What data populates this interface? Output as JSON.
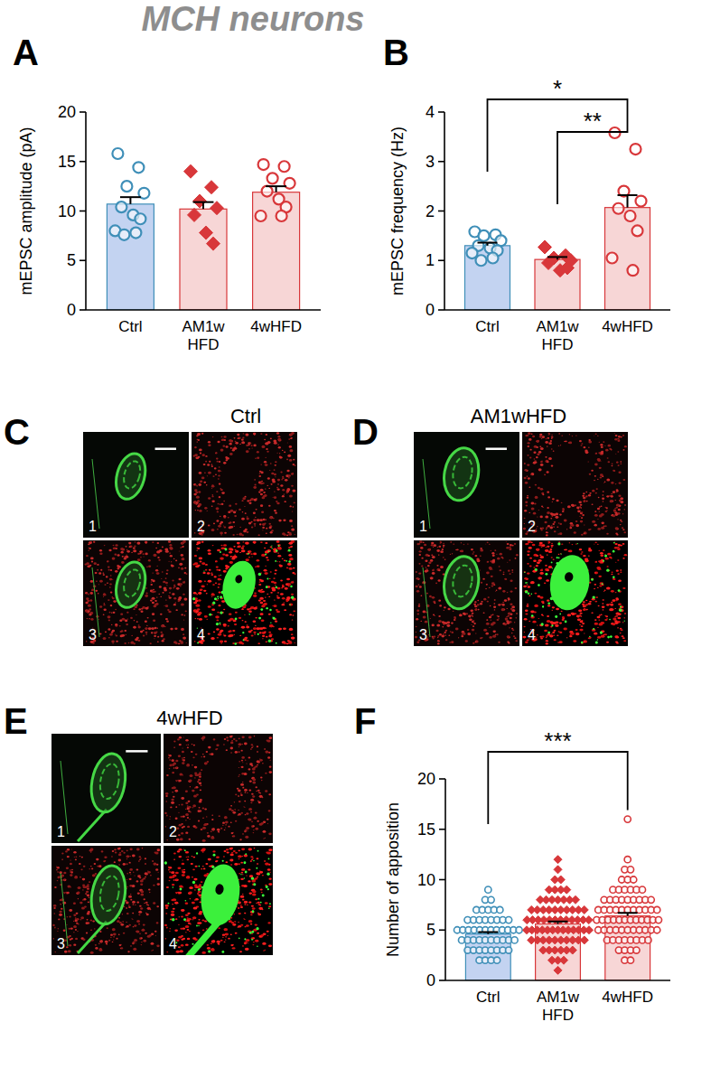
{
  "figure_title": "MCH neurons",
  "chart_data": [
    {
      "panel_label": "A",
      "type": "bar",
      "y_label": "mEPSC amplitude (pA)",
      "categories": [
        "Ctrl",
        "AM1w HFD",
        "4wHFD"
      ],
      "values": [
        10.7,
        10.2,
        11.9
      ],
      "errors": [
        0.7,
        0.7,
        0.6
      ],
      "points": [
        [
          15.8,
          14.4,
          12.5,
          11.8,
          10.4,
          9.6,
          9.2,
          8.0,
          7.8,
          7.6
        ],
        [
          14.0,
          12.4,
          11.0,
          10.3,
          9.6,
          7.8,
          6.7
        ],
        [
          14.7,
          14.5,
          13.3,
          12.8,
          12.0,
          11.2,
          10.4,
          9.5,
          9.5
        ]
      ],
      "colors": [
        "#c3d3f1",
        "#f7d6d6",
        "#f7d6d6"
      ],
      "point_colors": [
        "#3f8fb8",
        "#d8373a",
        "#d8373a"
      ],
      "markers": [
        "circle",
        "diamond",
        "circle"
      ],
      "ylim": [
        0,
        20
      ],
      "yticks": [
        0,
        5,
        10,
        15,
        20
      ],
      "significance": []
    },
    {
      "panel_label": "B",
      "type": "bar",
      "y_label": "mEPSC frequency (Hz)",
      "categories": [
        "Ctrl",
        "AM1w HFD",
        "4wHFD"
      ],
      "values": [
        1.3,
        1.02,
        2.07
      ],
      "errors": [
        0.06,
        0.05,
        0.25
      ],
      "points": [
        [
          1.58,
          1.52,
          1.5,
          1.4,
          1.3,
          1.25,
          1.2,
          1.15,
          1.05,
          1.0
        ],
        [
          1.27,
          1.1,
          1.05,
          1.0,
          0.95,
          0.8,
          0.85
        ],
        [
          3.58,
          3.25,
          2.4,
          2.2,
          2.05,
          1.9,
          1.6,
          1.05,
          0.8
        ]
      ],
      "colors": [
        "#c3d3f1",
        "#f7d6d6",
        "#f7d6d6"
      ],
      "point_colors": [
        "#3f8fb8",
        "#d8373a",
        "#d8373a"
      ],
      "markers": [
        "circle",
        "diamond",
        "circle"
      ],
      "ylim": [
        0,
        4
      ],
      "yticks": [
        0,
        1,
        2,
        3,
        4
      ],
      "significance": [
        {
          "between": [
            "Ctrl",
            "4wHFD"
          ],
          "label": "*"
        },
        {
          "between": [
            "AM1w HFD",
            "4wHFD"
          ],
          "label": "**"
        }
      ]
    },
    {
      "panel_label": "F",
      "type": "bar",
      "y_label": "Number of apposition",
      "categories": [
        "Ctrl",
        "AM1w HFD",
        "4wHFD"
      ],
      "values": [
        4.6,
        5.6,
        6.4
      ],
      "errors": [
        0.2,
        0.25,
        0.3
      ],
      "points": [
        [
          2,
          2,
          2,
          2,
          3,
          3,
          3,
          3,
          3,
          3,
          3,
          3,
          4,
          4,
          4,
          4,
          4,
          4,
          4,
          4,
          4,
          4,
          5,
          5,
          5,
          5,
          5,
          5,
          5,
          5,
          5,
          5,
          5,
          5,
          6,
          6,
          6,
          6,
          6,
          6,
          6,
          6,
          7,
          7,
          7,
          7,
          7,
          8,
          8,
          9
        ],
        [
          1,
          2,
          2,
          2,
          3,
          3,
          3,
          3,
          3,
          3,
          4,
          4,
          4,
          4,
          4,
          4,
          4,
          4,
          4,
          4,
          5,
          5,
          5,
          5,
          5,
          5,
          5,
          5,
          5,
          5,
          5,
          5,
          5,
          6,
          6,
          6,
          6,
          6,
          6,
          6,
          6,
          6,
          6,
          6,
          6,
          7,
          7,
          7,
          7,
          7,
          7,
          7,
          7,
          7,
          7,
          8,
          8,
          8,
          8,
          8,
          8,
          8,
          9,
          9,
          9,
          9,
          10,
          10,
          11,
          12
        ],
        [
          2,
          2,
          3,
          3,
          3,
          3,
          4,
          4,
          4,
          4,
          4,
          4,
          4,
          4,
          5,
          5,
          5,
          5,
          5,
          5,
          5,
          5,
          5,
          5,
          5,
          6,
          6,
          6,
          6,
          6,
          6,
          6,
          6,
          6,
          6,
          6,
          6,
          7,
          7,
          7,
          7,
          7,
          7,
          7,
          7,
          7,
          7,
          7,
          8,
          8,
          8,
          8,
          8,
          8,
          8,
          8,
          8,
          9,
          9,
          9,
          9,
          9,
          9,
          10,
          10,
          10,
          11,
          11,
          12,
          16
        ]
      ],
      "colors": [
        "#c3d3f1",
        "#f7d6d6",
        "#f7d6d6"
      ],
      "point_colors": [
        "#3f8fb8",
        "#d8373a",
        "#d8373a"
      ],
      "markers": [
        "circle",
        "diamond",
        "circle"
      ],
      "ylim": [
        0,
        20
      ],
      "yticks": [
        0,
        5,
        10,
        15,
        20
      ],
      "significance": [
        {
          "between": [
            "Ctrl",
            "4wHFD"
          ],
          "label": "***"
        }
      ]
    }
  ],
  "image_panels": [
    {
      "label": "C",
      "title": "Ctrl",
      "tiles": [
        "1",
        "2",
        "3",
        "4"
      ]
    },
    {
      "label": "D",
      "title": "AM1wHFD",
      "tiles": [
        "1",
        "2",
        "3",
        "4"
      ]
    },
    {
      "label": "E",
      "title": "4wHFD",
      "tiles": [
        "1",
        "2",
        "3",
        "4"
      ]
    }
  ]
}
